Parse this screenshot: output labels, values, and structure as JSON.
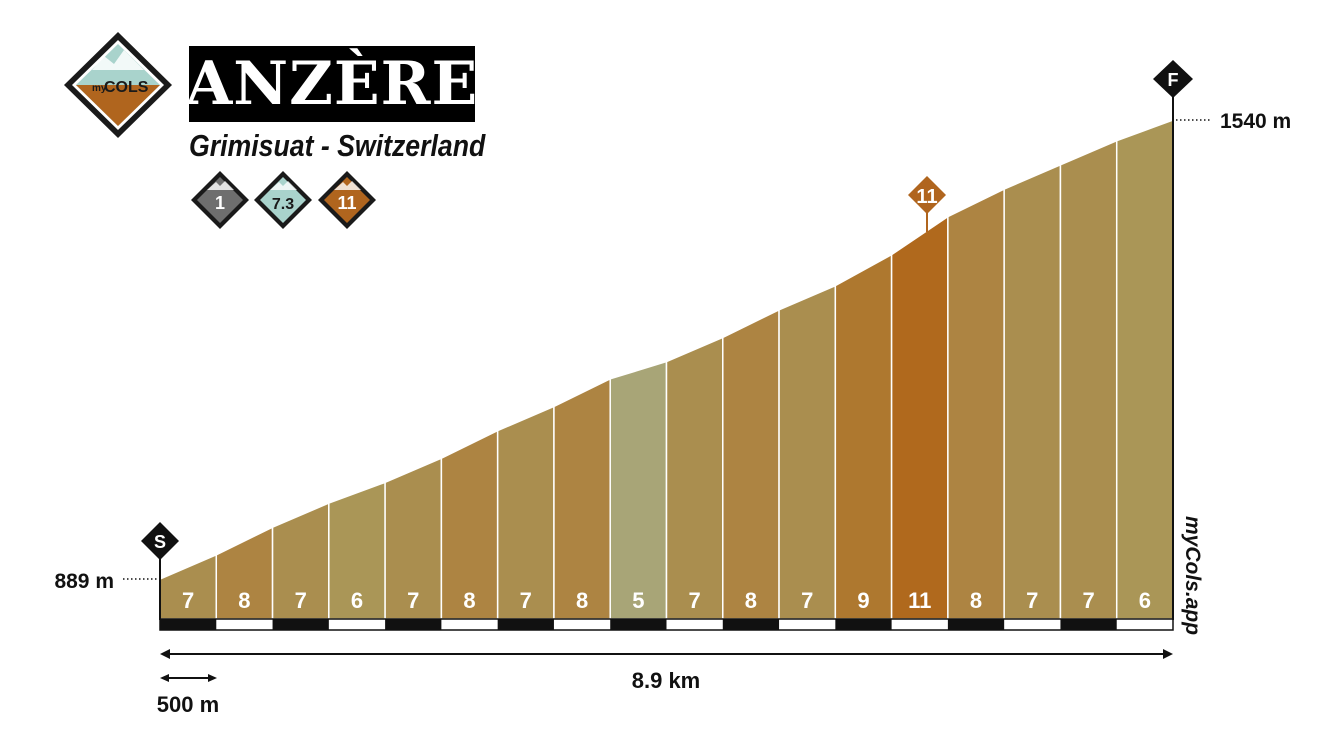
{
  "header": {
    "title": "ANZÈRE",
    "subtitle": "Grimisuat - Switzerland",
    "badges": [
      {
        "value": "1",
        "color": "#6e6e6e"
      },
      {
        "value": "7.3",
        "color": "#a9d3cc"
      },
      {
        "value": "11",
        "color": "#b0651e"
      }
    ]
  },
  "logo": {
    "text_small": "my",
    "text_big": "COLS"
  },
  "chart_data": {
    "type": "area",
    "segment_length_km": 0.5,
    "segments": [
      {
        "index": 1,
        "gradient": 7
      },
      {
        "index": 2,
        "gradient": 8
      },
      {
        "index": 3,
        "gradient": 7
      },
      {
        "index": 4,
        "gradient": 6
      },
      {
        "index": 5,
        "gradient": 7
      },
      {
        "index": 6,
        "gradient": 8
      },
      {
        "index": 7,
        "gradient": 7
      },
      {
        "index": 8,
        "gradient": 8
      },
      {
        "index": 9,
        "gradient": 5
      },
      {
        "index": 10,
        "gradient": 7
      },
      {
        "index": 11,
        "gradient": 8
      },
      {
        "index": 12,
        "gradient": 7
      },
      {
        "index": 13,
        "gradient": 9
      },
      {
        "index": 14,
        "gradient": 11
      },
      {
        "index": 15,
        "gradient": 8
      },
      {
        "index": 16,
        "gradient": 7
      },
      {
        "index": 17,
        "gradient": 7
      },
      {
        "index": 18,
        "gradient": 6
      }
    ],
    "start_elevation_label": "889 m",
    "finish_elevation_label": "1540 m",
    "start_marker": "S",
    "finish_marker": "F",
    "max_gradient_marker": "11",
    "total_distance_label": "8.9 km",
    "scale_label": "500 m",
    "watermark": "myCols.app",
    "colors": {
      "g5": "#a8a577",
      "g6": "#aa9657",
      "g7": "#aa8e4f",
      "g8": "#ad8442",
      "g9": "#ae782f",
      "g11": "#b0691d"
    }
  }
}
